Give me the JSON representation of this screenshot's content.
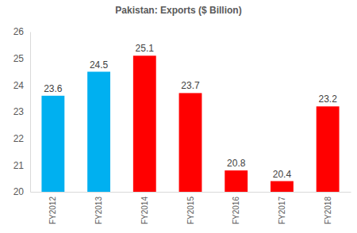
{
  "chart_data": {
    "type": "bar",
    "title": "Pakistan: Exports ($ Billion)",
    "categories": [
      "FY2012",
      "FY2013",
      "FY2014",
      "FY2015",
      "FY2016",
      "FY2017",
      "FY2018"
    ],
    "values": [
      23.6,
      24.5,
      25.1,
      23.7,
      20.8,
      20.4,
      23.2
    ],
    "colors": [
      "#00b0f0",
      "#00b0f0",
      "#ff0000",
      "#ff0000",
      "#ff0000",
      "#ff0000",
      "#ff0000"
    ],
    "ylim": [
      20,
      26
    ],
    "yticks": [
      20,
      21,
      22,
      23,
      24,
      25,
      26
    ],
    "grid": false,
    "data_labels": true
  }
}
